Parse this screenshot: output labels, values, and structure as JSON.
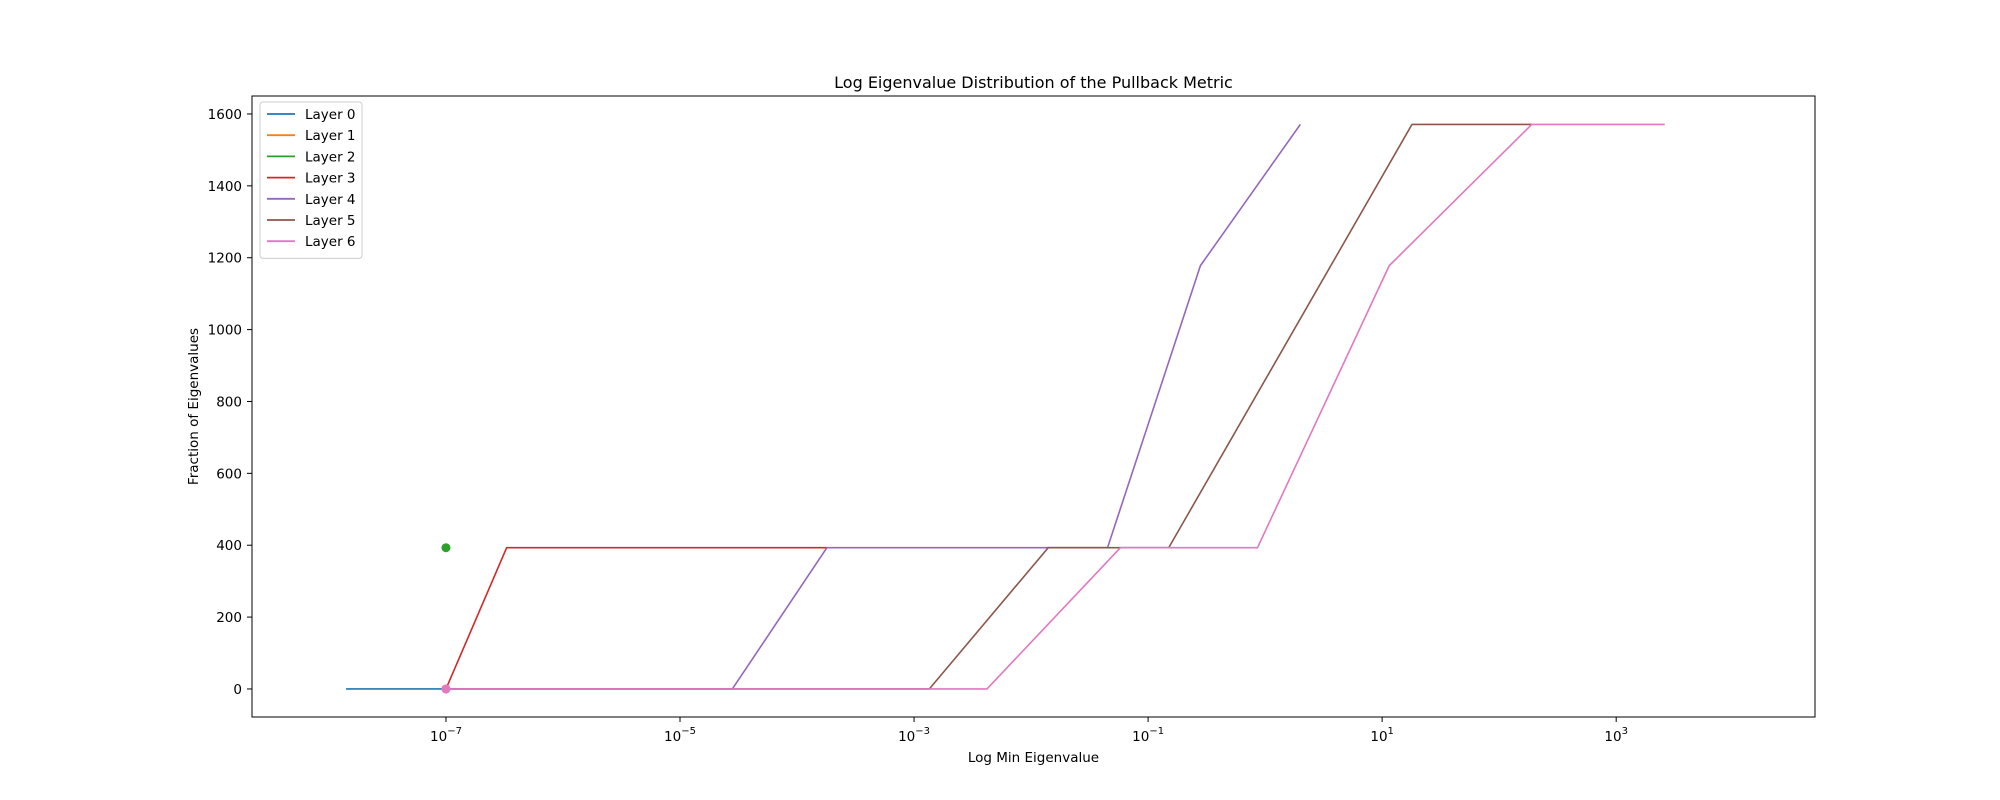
{
  "chart_data": {
    "type": "line",
    "title": "Log Eigenvalue Distribution of the Pullback Metric",
    "xlabel": "Log Min Eigenvalue",
    "ylabel": "Fraction of Eigenvalues",
    "xscale": "log",
    "xlim": [
      2.2e-09,
      50000
    ],
    "ylim": [
      -78,
      1650
    ],
    "xticks": [
      1e-07,
      1e-05,
      0.001,
      0.1,
      10,
      1000
    ],
    "xtick_labels": [
      {
        "base": "10",
        "exp": "−7"
      },
      {
        "base": "10",
        "exp": "−5"
      },
      {
        "base": "10",
        "exp": "−3"
      },
      {
        "base": "10",
        "exp": "−1"
      },
      {
        "base": "10",
        "exp": "1"
      },
      {
        "base": "10",
        "exp": "3"
      }
    ],
    "yticks": [
      0,
      200,
      400,
      600,
      800,
      1000,
      1200,
      1400,
      1600
    ],
    "ytick_labels": [
      "0",
      "200",
      "400",
      "600",
      "800",
      "1000",
      "1200",
      "1400",
      "1600"
    ],
    "grid": false,
    "legend_position": "upper-left",
    "series": [
      {
        "name": "Layer 0",
        "color": "#1f77b4",
        "points": [
          [
            1.4e-08,
            0
          ],
          [
            1e-07,
            0
          ]
        ],
        "markers": []
      },
      {
        "name": "Layer 1",
        "color": "#ff7f0e",
        "points": [
          [
            1e-07,
            0
          ],
          [
            1e-07,
            0
          ]
        ],
        "markers": [
          [
            1e-07,
            0
          ]
        ]
      },
      {
        "name": "Layer 2",
        "color": "#2ca02c",
        "points": [
          [
            1e-07,
            393
          ],
          [
            1e-07,
            393
          ]
        ],
        "markers": [
          [
            1e-07,
            393
          ]
        ]
      },
      {
        "name": "Layer 3",
        "color": "#d62728",
        "points": [
          [
            1e-07,
            0
          ],
          [
            3.3e-07,
            393
          ],
          [
            0.00018,
            393
          ]
        ],
        "markers": []
      },
      {
        "name": "Layer 4",
        "color": "#9467bd",
        "points": [
          [
            1e-07,
            0
          ],
          [
            2.8e-05,
            0
          ],
          [
            0.00018,
            393
          ],
          [
            0.045,
            393
          ],
          [
            0.28,
            1178
          ],
          [
            2,
            1571
          ]
        ],
        "markers": []
      },
      {
        "name": "Layer 5",
        "color": "#8c564b",
        "points": [
          [
            1e-07,
            0
          ],
          [
            0.00135,
            0
          ],
          [
            0.014,
            393
          ],
          [
            0.15,
            393
          ],
          [
            18,
            1571
          ],
          [
            190,
            1571
          ]
        ],
        "markers": []
      },
      {
        "name": "Layer 6",
        "color": "#e377c2",
        "points": [
          [
            1e-07,
            0
          ],
          [
            0.0042,
            0
          ],
          [
            0.058,
            393
          ],
          [
            0.86,
            393
          ],
          [
            11.5,
            1178
          ],
          [
            190,
            1571
          ],
          [
            2600,
            1571
          ]
        ],
        "markers": [
          [
            1e-07,
            0
          ]
        ]
      }
    ]
  }
}
